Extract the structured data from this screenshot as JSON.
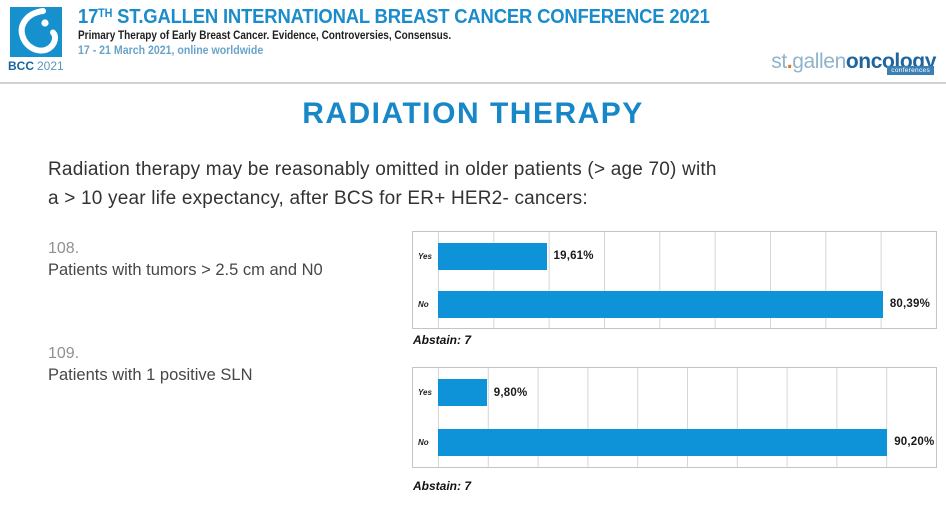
{
  "header": {
    "logo": {
      "bcc": "BCC",
      "year": "2021"
    },
    "title_num": "17",
    "title_sup": "TH",
    "title_rest": " ST.GALLEN INTERNATIONAL BREAST CANCER CONFERENCE 2021",
    "subtitle": "Primary Therapy of Early Breast Cancer. Evidence, Controversies, Consensus.",
    "dates": "17 - 21 March 2021, online worldwide",
    "brand": {
      "st": "st",
      "dot": ".",
      "gallen": "gallen",
      "oncology": "oncology",
      "badge": "conferences"
    }
  },
  "page_title": "RADIATION THERAPY",
  "intro_lines": [
    "Radiation therapy may be reasonably omitted in older patients (> age 70)  with",
    "a > 10 year life expectancy, after BCS for ER+ HER2- cancers:"
  ],
  "questions": [
    {
      "number": "108.",
      "text": "Patients with tumors > 2.5 cm and N0"
    },
    {
      "number": "109.",
      "text": "Patients with 1 positive SLN"
    }
  ],
  "colors": {
    "bar_blue": "#0e92d8",
    "title_blue": "#1787c8",
    "header_blue": "#1b8ccb",
    "logo_square_blue": "#1790ce"
  },
  "chart_data": [
    {
      "type": "bar",
      "orientation": "horizontal",
      "question": "108. Patients with tumors > 2.5 cm and N0",
      "categories": [
        "Yes",
        "No"
      ],
      "values": [
        19.61,
        80.39
      ],
      "value_labels": [
        "19,61%",
        "80,39%"
      ],
      "abstain": 7,
      "abstain_label": "Abstain: 7",
      "xlim": [
        0,
        90
      ],
      "gridline_step": 10,
      "grid": true,
      "legend": "none"
    },
    {
      "type": "bar",
      "orientation": "horizontal",
      "question": "109. Patients with 1 positive SLN",
      "categories": [
        "Yes",
        "No"
      ],
      "values": [
        9.8,
        90.2
      ],
      "value_labels": [
        "9,80%",
        "90,20%"
      ],
      "abstain": 7,
      "abstain_label": "Abstain: 7",
      "xlim": [
        0,
        100
      ],
      "gridline_step": 10,
      "grid": true,
      "legend": "none"
    }
  ]
}
